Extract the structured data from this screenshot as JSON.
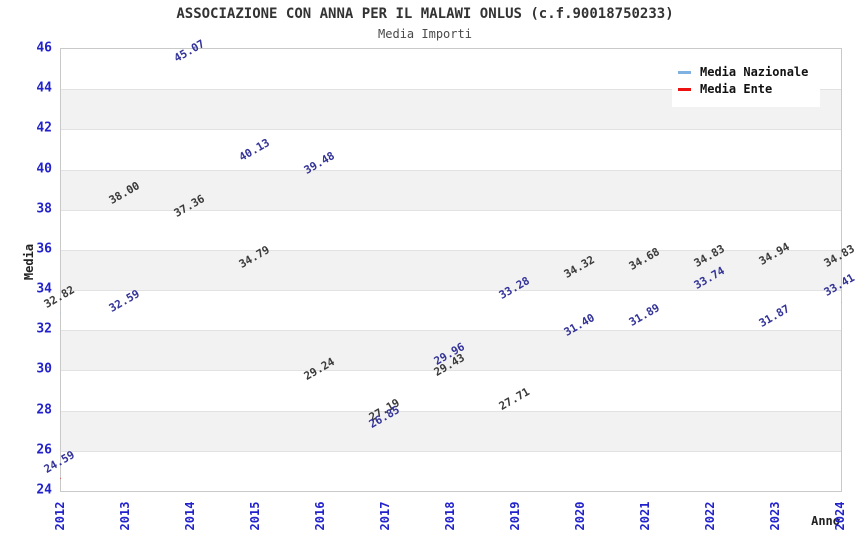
{
  "title": "ASSOCIAZIONE CON ANNA PER IL MALAWI ONLUS (c.f.90018750233)",
  "subtitle": "Media Importi",
  "legend": {
    "position": "top-right",
    "items": [
      "Media Nazionale",
      "Media Ente"
    ]
  },
  "chart_data": {
    "type": "line",
    "title": "ASSOCIAZIONE CON ANNA PER IL MALAWI ONLUS (c.f.90018750233)",
    "subtitle": "Media Importi",
    "xlabel": "Anno",
    "ylabel": "Media",
    "categories": [
      "2012",
      "2013",
      "2014",
      "2015",
      "2016",
      "2017",
      "2018",
      "2019",
      "2020",
      "2021",
      "2022",
      "2023",
      "2024"
    ],
    "series": [
      {
        "name": "Media Nazionale",
        "color": "#7FB1E1",
        "label_color": "#3a3a3a",
        "values": [
          32.82,
          38.0,
          37.36,
          34.79,
          29.24,
          27.19,
          29.43,
          27.71,
          34.32,
          34.68,
          34.83,
          34.94,
          34.83
        ]
      },
      {
        "name": "Media Ente",
        "color": "#ee1111",
        "label_color": "#333399",
        "values": [
          24.59,
          32.59,
          45.07,
          40.13,
          39.48,
          26.85,
          29.96,
          33.28,
          31.4,
          31.89,
          33.74,
          31.87,
          33.41
        ]
      }
    ],
    "ylim": [
      24,
      46
    ],
    "ytick_step": 2,
    "grid": "horizontal-bands",
    "tick_color": "#2222cc",
    "band_colors": [
      "#ffffff",
      "#f2f2f2"
    ],
    "legend_position": "top-right"
  }
}
